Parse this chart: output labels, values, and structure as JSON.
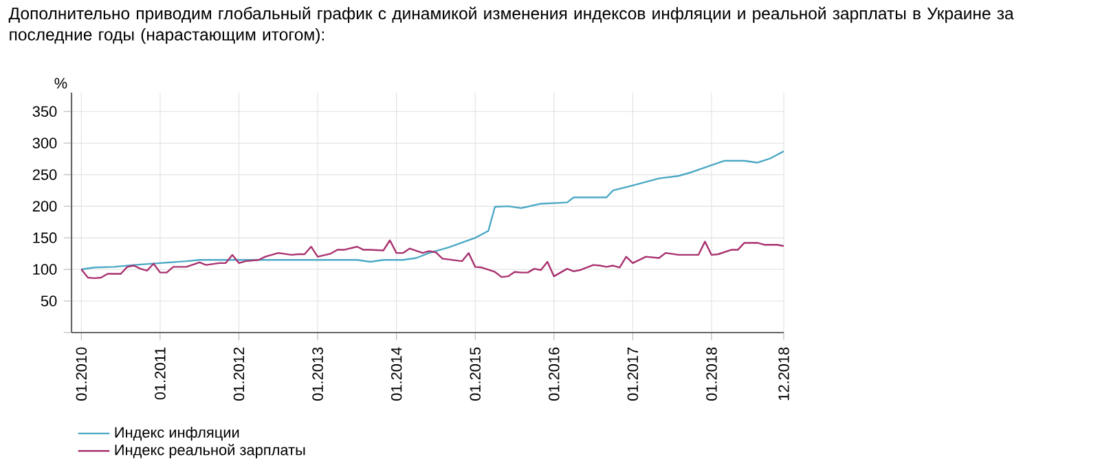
{
  "chart_data": {
    "type": "line",
    "title": "Дополнительно приводим глобальный график с динамикой изменения индексов инфляции и реальной зарплаты в Украине за последние годы (нарастающим итогом):",
    "ylabel": "%",
    "xlim": [
      "2009-11-16",
      "2018-12"
    ],
    "ylim": [
      0,
      380
    ],
    "xticks": [
      {
        "value": "2010-01",
        "label": "01.2010"
      },
      {
        "value": "2011-01",
        "label": "01.2011"
      },
      {
        "value": "2012-01",
        "label": "01.2012"
      },
      {
        "value": "2013-01",
        "label": "01.2013"
      },
      {
        "value": "2014-01",
        "label": "01.2014"
      },
      {
        "value": "2015-01",
        "label": "01.2015"
      },
      {
        "value": "2016-01",
        "label": "01.2016"
      },
      {
        "value": "2017-01",
        "label": "01.2017"
      },
      {
        "value": "2018-01",
        "label": "01.2018"
      },
      {
        "value": "2018-12",
        "label": "12.2018"
      }
    ],
    "yticks": [
      {
        "value": 0,
        "label": null
      },
      50,
      100,
      150,
      200,
      250,
      300,
      350
    ],
    "grid": true,
    "legend": "bottom left",
    "line_style": "solid",
    "marker": "none",
    "series": [
      {
        "name": "Индекс инфляции",
        "color": "#4aa8c4",
        "x": [
          "2010-01",
          "2010-03",
          "2010-06",
          "2010-09",
          "2011-01",
          "2011-05",
          "2011-07",
          "2012-07",
          "2013-07",
          "2013-09",
          "2013-11",
          "2014-02",
          "2014-04",
          "2014-06",
          "2014-09",
          "2015-01",
          "2015-03",
          "2015-04",
          "2015-06",
          "2015-08",
          "2015-11",
          "2016-03",
          "2016-04",
          "2016-09",
          "2016-10",
          "2017-01",
          "2017-05",
          "2017-08",
          "2017-10",
          "2018-01",
          "2018-03",
          "2018-06",
          "2018-08",
          "2018-10",
          "2018-12"
        ],
        "values": [
          100,
          103,
          104,
          107,
          110,
          113,
          115,
          115,
          115,
          112,
          115,
          115,
          118,
          126,
          135,
          150,
          161,
          199,
          200,
          197,
          204,
          206,
          214,
          214,
          225,
          233,
          244,
          248,
          254,
          265,
          272,
          272,
          269,
          276,
          287
        ]
      },
      {
        "name": "Индекс реальной зарплаты",
        "color": "#a8306e",
        "x": [
          "2010-01",
          "2010-02",
          "2010-03",
          "2010-04",
          "2010-05",
          "2010-07",
          "2010-08",
          "2010-09",
          "2010-10",
          "2010-11",
          "2010-12",
          "2011-01",
          "2011-02",
          "2011-03",
          "2011-05",
          "2011-07",
          "2011-08",
          "2011-10",
          "2011-11",
          "2011-12",
          "2012-01",
          "2012-02",
          "2012-04",
          "2012-05",
          "2012-07",
          "2012-09",
          "2012-10",
          "2012-11",
          "2012-12",
          "2013-01",
          "2013-03",
          "2013-04",
          "2013-05",
          "2013-07",
          "2013-08",
          "2013-09",
          "2013-11",
          "2013-12",
          "2014-01",
          "2014-02",
          "2014-03",
          "2014-05",
          "2014-06",
          "2014-07",
          "2014-08",
          "2014-11",
          "2014-12",
          "2015-01",
          "2015-02",
          "2015-04",
          "2015-05",
          "2015-06",
          "2015-07",
          "2015-08",
          "2015-09",
          "2015-10",
          "2015-11",
          "2015-12",
          "2016-01",
          "2016-03",
          "2016-04",
          "2016-05",
          "2016-07",
          "2016-08",
          "2016-09",
          "2016-10",
          "2016-11",
          "2016-12",
          "2017-01",
          "2017-03",
          "2017-05",
          "2017-06",
          "2017-08",
          "2017-11",
          "2017-12",
          "2018-01",
          "2018-02",
          "2018-04",
          "2018-05",
          "2018-06",
          "2018-08",
          "2018-09",
          "2018-11",
          "2018-12"
        ],
        "values": [
          100,
          87,
          86,
          87,
          93,
          93,
          104,
          106,
          101,
          98,
          109,
          95,
          95,
          104,
          104,
          111,
          107,
          110,
          110,
          123,
          110,
          113,
          115,
          120,
          126,
          123,
          124,
          124,
          136,
          120,
          125,
          131,
          131,
          136,
          131,
          131,
          130,
          146,
          126,
          126,
          133,
          126,
          129,
          127,
          117,
          113,
          126,
          104,
          103,
          96,
          88,
          89,
          96,
          95,
          95,
          101,
          99,
          112,
          89,
          101,
          97,
          99,
          107,
          106,
          104,
          106,
          103,
          120,
          110,
          120,
          118,
          126,
          123,
          123,
          144,
          123,
          124,
          131,
          131,
          142,
          142,
          139,
          139,
          137
        ]
      }
    ]
  }
}
